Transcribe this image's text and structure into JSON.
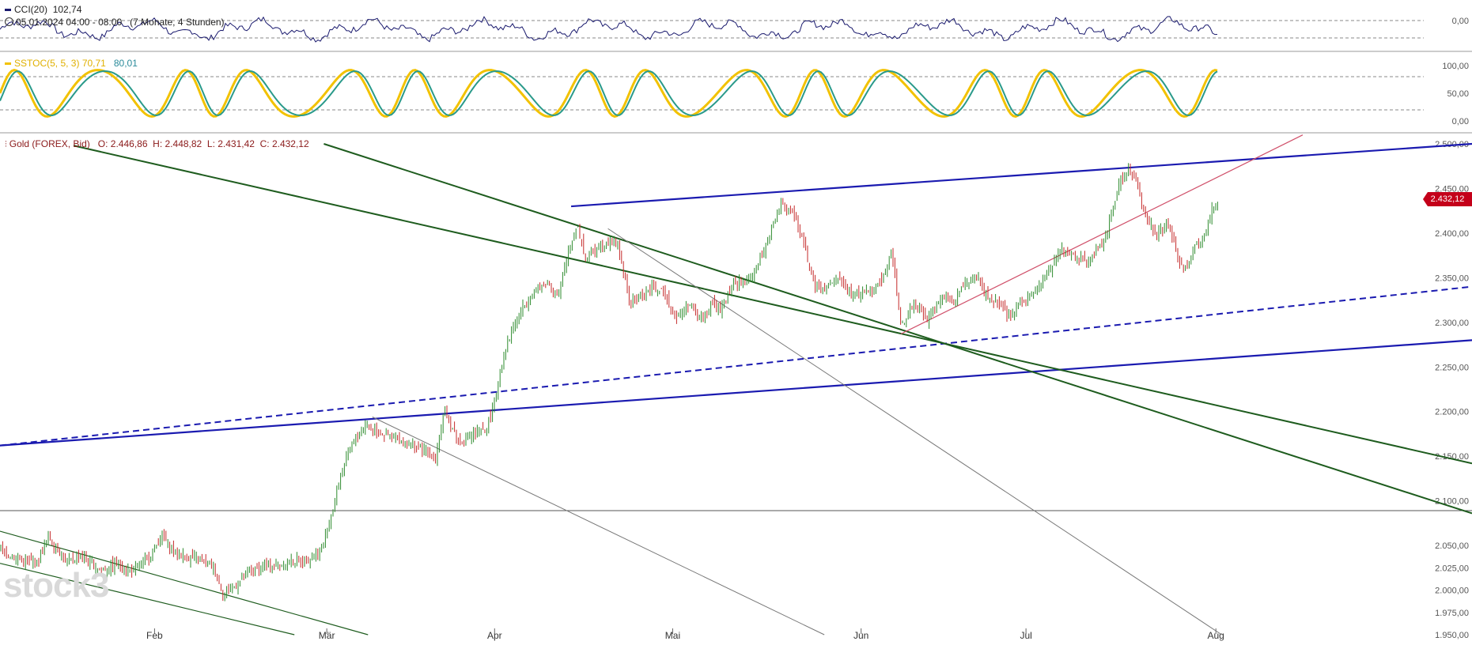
{
  "header": {
    "cci_label": "CCI(20)",
    "cci_value": "102,74",
    "range_label": "05.01.2024 04:00 - 08:00",
    "range_note": "(7 Monate, 4 Stunden)",
    "sstoc_label": "SSTOC(5, 5, 3)",
    "sstoc_k": "70,71",
    "sstoc_d": "80,01",
    "instrument": "Gold (FOREX, Bid)",
    "ohlc": "O: 2.446,86  H: 2.448,82  L: 2.431,42  C: 2.432,12"
  },
  "last_price_badge": "2.432,12",
  "watermark": "stock3",
  "colors": {
    "candle_up": "#2e8b2e",
    "candle_down": "#c42a2a",
    "trend_blue": "#1a1ab0",
    "trend_green": "#1e5c1e",
    "trend_red": "#d0506a",
    "cci_line": "#1a1a6e",
    "stoc_k": "#f2c200",
    "stoc_d": "#2a9a8a",
    "badge": "#c4001a"
  },
  "chart_data": [
    {
      "type": "line",
      "panel": "CCI",
      "series": [
        {
          "name": "CCI(20)",
          "last": 102.74
        }
      ],
      "yticks": [
        "0,00"
      ]
    },
    {
      "type": "line",
      "panel": "SSTOC",
      "series": [
        {
          "name": "SSTOC(5, 5, 3)",
          "last": 70.71
        },
        {
          "name": "SSTOC(5, 5, 3)",
          "last": 80.01
        }
      ],
      "ylim": [
        0,
        100
      ],
      "yticks": [
        "100,00",
        "50,00",
        "0,00"
      ]
    },
    {
      "type": "candlestick",
      "panel": "price",
      "title": "Gold (FOREX, Bid)",
      "ylim": [
        1950,
        2500
      ],
      "yticks": [
        "2.500,00",
        "2.450,00",
        "2.400,00",
        "2.350,00",
        "2.300,00",
        "2.250,00",
        "2.200,00",
        "2.150,00",
        "2.100,00",
        "2.050,00",
        "2.025,00",
        "2.000,00",
        "1.975,00",
        "1.950,00"
      ],
      "ytick_values": [
        2500,
        2450,
        2400,
        2350,
        2300,
        2250,
        2200,
        2150,
        2100,
        2050,
        2025,
        2000,
        1975,
        1950
      ],
      "xticks": [
        "Feb",
        "Mär",
        "Apr",
        "Mai",
        "Jun",
        "Jul",
        "Aug"
      ],
      "xtick_pos": [
        0.105,
        0.222,
        0.336,
        0.457,
        0.585,
        0.697,
        0.826
      ],
      "price_path": [
        [
          0.0,
          2045
        ],
        [
          0.012,
          2035
        ],
        [
          0.025,
          2030
        ],
        [
          0.033,
          2060
        ],
        [
          0.045,
          2032
        ],
        [
          0.055,
          2038
        ],
        [
          0.068,
          2022
        ],
        [
          0.08,
          2030
        ],
        [
          0.09,
          2020
        ],
        [
          0.1,
          2035
        ],
        [
          0.11,
          2060
        ],
        [
          0.12,
          2040
        ],
        [
          0.132,
          2035
        ],
        [
          0.145,
          2025
        ],
        [
          0.152,
          1995
        ],
        [
          0.16,
          2005
        ],
        [
          0.17,
          2020
        ],
        [
          0.18,
          2028
        ],
        [
          0.195,
          2030
        ],
        [
          0.21,
          2035
        ],
        [
          0.218,
          2045
        ],
        [
          0.224,
          2075
        ],
        [
          0.23,
          2120
        ],
        [
          0.238,
          2160
        ],
        [
          0.248,
          2185
        ],
        [
          0.256,
          2178
        ],
        [
          0.268,
          2170
        ],
        [
          0.282,
          2160
        ],
        [
          0.296,
          2150
        ],
        [
          0.302,
          2200
        ],
        [
          0.312,
          2165
        ],
        [
          0.322,
          2175
        ],
        [
          0.33,
          2180
        ],
        [
          0.336,
          2210
        ],
        [
          0.342,
          2265
        ],
        [
          0.35,
          2300
        ],
        [
          0.36,
          2330
        ],
        [
          0.372,
          2345
        ],
        [
          0.38,
          2330
        ],
        [
          0.386,
          2380
        ],
        [
          0.392,
          2410
        ],
        [
          0.398,
          2370
        ],
        [
          0.406,
          2385
        ],
        [
          0.414,
          2392
        ],
        [
          0.42,
          2385
        ],
        [
          0.428,
          2320
        ],
        [
          0.436,
          2330
        ],
        [
          0.444,
          2340
        ],
        [
          0.452,
          2330
        ],
        [
          0.46,
          2305
        ],
        [
          0.468,
          2320
        ],
        [
          0.476,
          2305
        ],
        [
          0.484,
          2320
        ],
        [
          0.49,
          2315
        ],
        [
          0.498,
          2345
        ],
        [
          0.506,
          2345
        ],
        [
          0.514,
          2360
        ],
        [
          0.522,
          2395
        ],
        [
          0.53,
          2430
        ],
        [
          0.538,
          2425
        ],
        [
          0.546,
          2390
        ],
        [
          0.552,
          2345
        ],
        [
          0.56,
          2335
        ],
        [
          0.57,
          2350
        ],
        [
          0.58,
          2330
        ],
        [
          0.59,
          2335
        ],
        [
          0.598,
          2345
        ],
        [
          0.606,
          2380
        ],
        [
          0.612,
          2295
        ],
        [
          0.62,
          2320
        ],
        [
          0.63,
          2305
        ],
        [
          0.64,
          2330
        ],
        [
          0.648,
          2325
        ],
        [
          0.656,
          2345
        ],
        [
          0.664,
          2350
        ],
        [
          0.67,
          2330
        ],
        [
          0.678,
          2320
        ],
        [
          0.686,
          2305
        ],
        [
          0.694,
          2325
        ],
        [
          0.702,
          2330
        ],
        [
          0.71,
          2350
        ],
        [
          0.72,
          2380
        ],
        [
          0.73,
          2375
        ],
        [
          0.74,
          2370
        ],
        [
          0.75,
          2390
        ],
        [
          0.76,
          2455
        ],
        [
          0.766,
          2470
        ],
        [
          0.772,
          2460
        ],
        [
          0.778,
          2420
        ],
        [
          0.786,
          2400
        ],
        [
          0.794,
          2410
        ],
        [
          0.8,
          2370
        ],
        [
          0.806,
          2360
        ],
        [
          0.812,
          2385
        ],
        [
          0.818,
          2395
        ],
        [
          0.824,
          2430
        ],
        [
          0.828,
          2432
        ]
      ]
    }
  ]
}
